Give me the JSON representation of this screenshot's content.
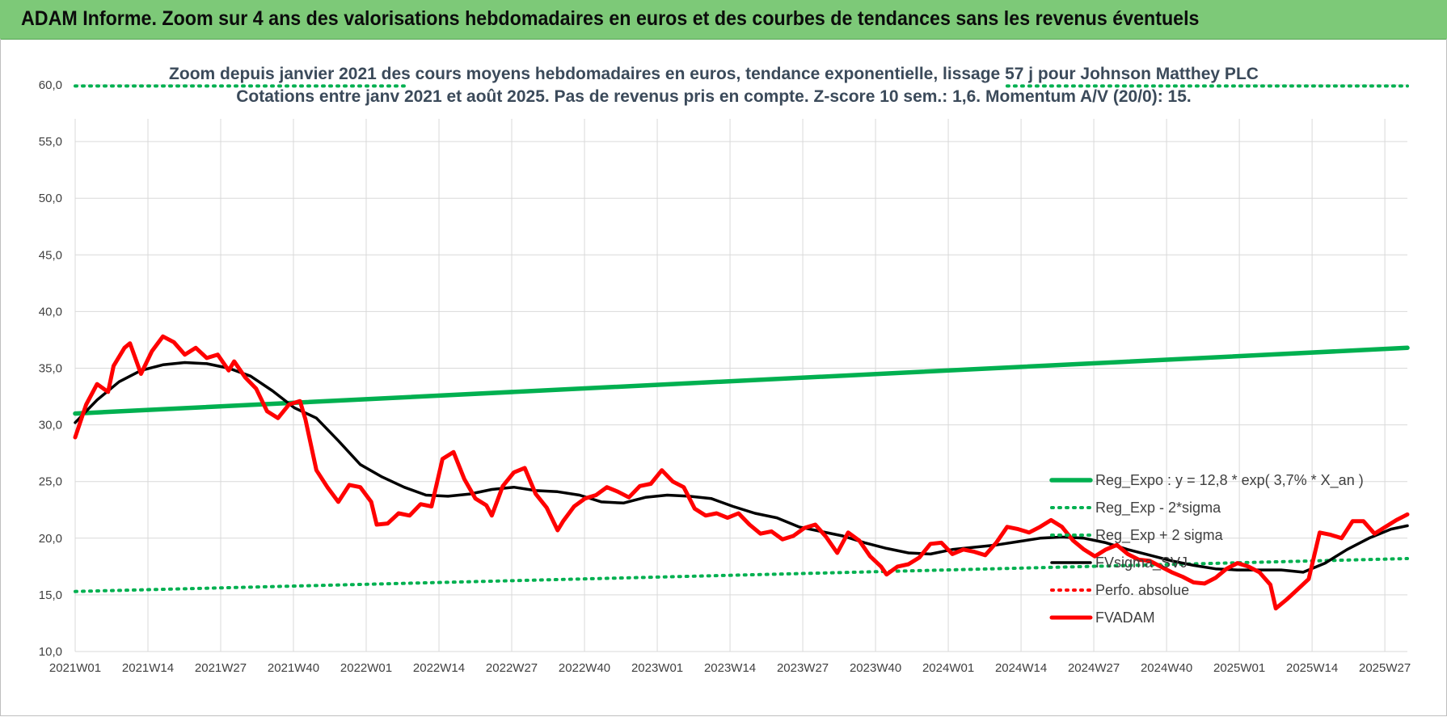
{
  "banner": {
    "title": "ADAM Informe. Zoom sur 4 ans des valorisations hebdomadaires en euros et des courbes de tendances sans les revenus éventuels"
  },
  "colors": {
    "banner_bg": "#7dc978",
    "reg_expo": "#00b050",
    "fvsigma": "#000000",
    "fvadam": "#ff0000",
    "perfo": "#ff0000",
    "grid": "#d9d9d9"
  },
  "chart_data": {
    "type": "line",
    "title": "Zoom depuis janvier 2021 des cours moyens hebdomadaires en euros, tendance exponentielle, lissage 57 j pour Johnson Matthey PLC",
    "subtitle": "Cotations entre janv 2021 et août 2025.  Pas de revenus pris en compte. Z-score 10 sem.: 1,6. Momentum A/V (20/0): 15.",
    "xlabel": "",
    "ylabel": "",
    "ylim": [
      10,
      60
    ],
    "yticks": [
      "10,0",
      "15,0",
      "20,0",
      "25,0",
      "30,0",
      "35,0",
      "40,0",
      "45,0",
      "50,0",
      "55,0",
      "60,0"
    ],
    "xticks": [
      "2021W01",
      "2021W14",
      "2021W27",
      "2021W40",
      "2022W01",
      "2022W14",
      "2022W27",
      "2022W40",
      "2023W01",
      "2023W14",
      "2023W27",
      "2023W40",
      "2024W01",
      "2024W14",
      "2024W27",
      "2024W40",
      "2025W01",
      "2025W14",
      "2025W27"
    ],
    "x_range_weeks": [
      0,
      243
    ],
    "grid": true,
    "legend_position": "bottom-right",
    "series": [
      {
        "name": "Reg_Expo : y = 12,8 * exp( 3,7% *  X_an )",
        "style": "solid-thick",
        "color": "#00b050",
        "points": [
          [
            0,
            31.0
          ],
          [
            243,
            36.8
          ]
        ]
      },
      {
        "name": "Reg_Exp - 2*sigma",
        "style": "dotted",
        "color": "#00b050",
        "points": [
          [
            0,
            15.3
          ],
          [
            243,
            18.2
          ]
        ]
      },
      {
        "name": "Reg_Exp + 2 sigma",
        "style": "dotted",
        "color": "#00b050",
        "points": [
          [
            0,
            59.9
          ],
          [
            243,
            59.9
          ]
        ]
      },
      {
        "name": "FVsigma_SVJ",
        "style": "solid",
        "color": "#000000",
        "points": [
          [
            0,
            30.2
          ],
          [
            4,
            32.2
          ],
          [
            8,
            33.8
          ],
          [
            12,
            34.8
          ],
          [
            16,
            35.3
          ],
          [
            20,
            35.5
          ],
          [
            24,
            35.4
          ],
          [
            28,
            35.0
          ],
          [
            32,
            34.3
          ],
          [
            36,
            33.0
          ],
          [
            40,
            31.5
          ],
          [
            44,
            30.6
          ],
          [
            48,
            28.6
          ],
          [
            52,
            26.5
          ],
          [
            56,
            25.4
          ],
          [
            60,
            24.5
          ],
          [
            64,
            23.8
          ],
          [
            68,
            23.7
          ],
          [
            72,
            23.9
          ],
          [
            76,
            24.3
          ],
          [
            80,
            24.5
          ],
          [
            84,
            24.2
          ],
          [
            88,
            24.1
          ],
          [
            92,
            23.8
          ],
          [
            96,
            23.2
          ],
          [
            100,
            23.1
          ],
          [
            104,
            23.6
          ],
          [
            108,
            23.8
          ],
          [
            112,
            23.7
          ],
          [
            116,
            23.5
          ],
          [
            120,
            22.8
          ],
          [
            124,
            22.2
          ],
          [
            128,
            21.8
          ],
          [
            132,
            21.0
          ],
          [
            136,
            20.6
          ],
          [
            140,
            20.2
          ],
          [
            144,
            19.6
          ],
          [
            148,
            19.1
          ],
          [
            152,
            18.7
          ],
          [
            156,
            18.6
          ],
          [
            160,
            19.0
          ],
          [
            164,
            19.2
          ],
          [
            168,
            19.4
          ],
          [
            172,
            19.7
          ],
          [
            176,
            20.0
          ],
          [
            180,
            20.1
          ],
          [
            184,
            20.0
          ],
          [
            188,
            19.6
          ],
          [
            192,
            19.0
          ],
          [
            196,
            18.5
          ],
          [
            200,
            18.0
          ],
          [
            204,
            17.6
          ],
          [
            208,
            17.3
          ],
          [
            212,
            17.2
          ],
          [
            216,
            17.2
          ],
          [
            220,
            17.2
          ],
          [
            224,
            17.0
          ],
          [
            228,
            17.8
          ],
          [
            232,
            19.0
          ],
          [
            236,
            20.0
          ],
          [
            240,
            20.8
          ],
          [
            243,
            21.1
          ]
        ]
      },
      {
        "name": "Perfo. absolue",
        "style": "dotted",
        "color": "#ff0000",
        "points": []
      },
      {
        "name": "FVADAM",
        "style": "solid-thick",
        "color": "#ff0000",
        "points": [
          [
            0,
            28.9
          ],
          [
            2,
            31.8
          ],
          [
            4,
            33.6
          ],
          [
            6,
            32.9
          ],
          [
            7,
            35.2
          ],
          [
            9,
            36.8
          ],
          [
            10,
            37.2
          ],
          [
            12,
            34.5
          ],
          [
            14,
            36.5
          ],
          [
            16,
            37.8
          ],
          [
            18,
            37.3
          ],
          [
            20,
            36.2
          ],
          [
            22,
            36.8
          ],
          [
            24,
            35.9
          ],
          [
            26,
            36.2
          ],
          [
            28,
            34.8
          ],
          [
            29,
            35.6
          ],
          [
            31,
            34.2
          ],
          [
            33,
            33.2
          ],
          [
            35,
            31.2
          ],
          [
            37,
            30.6
          ],
          [
            39,
            31.8
          ],
          [
            41,
            32.1
          ],
          [
            42,
            30.5
          ],
          [
            44,
            26.0
          ],
          [
            46,
            24.5
          ],
          [
            48,
            23.2
          ],
          [
            50,
            24.7
          ],
          [
            52,
            24.5
          ],
          [
            54,
            23.2
          ],
          [
            55,
            21.2
          ],
          [
            57,
            21.3
          ],
          [
            59,
            22.2
          ],
          [
            61,
            22.0
          ],
          [
            63,
            23.0
          ],
          [
            65,
            22.8
          ],
          [
            67,
            27.0
          ],
          [
            69,
            27.6
          ],
          [
            71,
            25.2
          ],
          [
            73,
            23.5
          ],
          [
            75,
            22.9
          ],
          [
            76,
            22.0
          ],
          [
            78,
            24.6
          ],
          [
            80,
            25.8
          ],
          [
            82,
            26.2
          ],
          [
            84,
            23.9
          ],
          [
            86,
            22.7
          ],
          [
            88,
            20.7
          ],
          [
            89,
            21.5
          ],
          [
            91,
            22.8
          ],
          [
            93,
            23.5
          ],
          [
            95,
            23.8
          ],
          [
            97,
            24.5
          ],
          [
            99,
            24.1
          ],
          [
            101,
            23.6
          ],
          [
            103,
            24.6
          ],
          [
            105,
            24.8
          ],
          [
            107,
            26.0
          ],
          [
            109,
            25.0
          ],
          [
            111,
            24.5
          ],
          [
            113,
            22.6
          ],
          [
            115,
            22.0
          ],
          [
            117,
            22.2
          ],
          [
            119,
            21.8
          ],
          [
            121,
            22.2
          ],
          [
            123,
            21.2
          ],
          [
            125,
            20.4
          ],
          [
            127,
            20.6
          ],
          [
            129,
            19.9
          ],
          [
            131,
            20.2
          ],
          [
            133,
            20.9
          ],
          [
            135,
            21.2
          ],
          [
            137,
            20.1
          ],
          [
            139,
            18.7
          ],
          [
            141,
            20.5
          ],
          [
            143,
            19.8
          ],
          [
            145,
            18.4
          ],
          [
            147,
            17.5
          ],
          [
            148,
            16.8
          ],
          [
            150,
            17.5
          ],
          [
            152,
            17.7
          ],
          [
            154,
            18.3
          ],
          [
            156,
            19.5
          ],
          [
            158,
            19.6
          ],
          [
            160,
            18.6
          ],
          [
            162,
            19.0
          ],
          [
            164,
            18.8
          ],
          [
            166,
            18.5
          ],
          [
            168,
            19.6
          ],
          [
            170,
            21.0
          ],
          [
            172,
            20.8
          ],
          [
            174,
            20.5
          ],
          [
            176,
            21.0
          ],
          [
            178,
            21.6
          ],
          [
            180,
            21.0
          ],
          [
            182,
            19.8
          ],
          [
            184,
            19.0
          ],
          [
            186,
            18.4
          ],
          [
            188,
            19.0
          ],
          [
            190,
            19.4
          ],
          [
            192,
            18.6
          ],
          [
            194,
            18.1
          ],
          [
            196,
            18.0
          ],
          [
            198,
            17.5
          ],
          [
            200,
            17.0
          ],
          [
            202,
            16.6
          ],
          [
            204,
            16.1
          ],
          [
            206,
            16.0
          ],
          [
            208,
            16.5
          ],
          [
            210,
            17.3
          ],
          [
            212,
            17.8
          ],
          [
            214,
            17.5
          ],
          [
            216,
            17.0
          ],
          [
            218,
            15.9
          ],
          [
            219,
            13.8
          ],
          [
            221,
            14.6
          ],
          [
            223,
            15.5
          ],
          [
            225,
            16.4
          ],
          [
            227,
            20.5
          ],
          [
            229,
            20.3
          ],
          [
            231,
            20.0
          ],
          [
            233,
            21.5
          ],
          [
            235,
            21.5
          ],
          [
            237,
            20.4
          ],
          [
            239,
            21.0
          ],
          [
            241,
            21.6
          ],
          [
            243,
            22.1
          ]
        ]
      }
    ]
  }
}
